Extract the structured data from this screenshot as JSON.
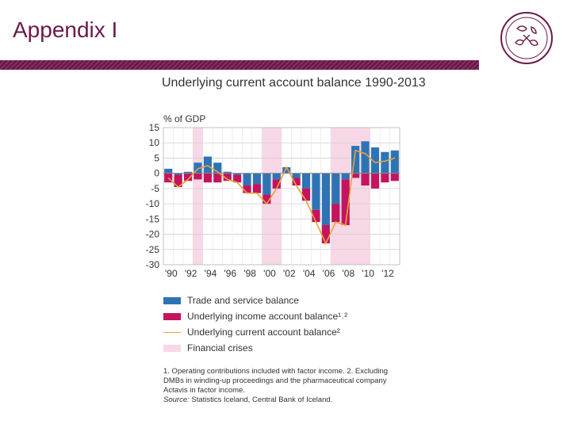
{
  "slide": {
    "title": "Appendix I"
  },
  "colors": {
    "brand": "#6b1a4a",
    "trade": "#2e74b5",
    "income": "#c4145e",
    "current": "#e8a13a",
    "crisis": "#f8d7e6"
  },
  "chart_data": {
    "type": "bar",
    "title": "Underlying current account balance 1990-2013",
    "ylabel": "% of GDP",
    "xlabel": "",
    "ylim": [
      -30,
      15
    ],
    "yticks": [
      15,
      10,
      5,
      0,
      -5,
      -10,
      -15,
      -20,
      -25,
      -30
    ],
    "xtick_labels": [
      "'90",
      "'92",
      "'94",
      "'96",
      "'98",
      "'00",
      "'02",
      "'04",
      "'06",
      "'08",
      "'10",
      "'12"
    ],
    "categories": [
      1990,
      1991,
      1992,
      1993,
      1994,
      1995,
      1996,
      1997,
      1998,
      1999,
      2000,
      2001,
      2002,
      2003,
      2004,
      2005,
      2006,
      2007,
      2008,
      2009,
      2010,
      2011,
      2012,
      2013
    ],
    "stacked": true,
    "grid": true,
    "series": [
      {
        "name": "Trade and service balance",
        "values": [
          1.5,
          -0.5,
          0.5,
          3.5,
          5.5,
          3.5,
          0.5,
          -0.5,
          -4,
          -3.5,
          -7,
          -2,
          2,
          -1.5,
          -5,
          -12,
          -17,
          -10,
          -2,
          9,
          10.5,
          8.5,
          7,
          7.5
        ]
      },
      {
        "name": "Underlying income account balance¹˒²",
        "values": [
          -3,
          -4,
          -2.5,
          -2,
          -3,
          -3,
          -2.5,
          -2.5,
          -2.5,
          -3,
          -3,
          -3,
          0,
          -2.5,
          -4,
          -4,
          -6,
          -6,
          -15,
          -1.5,
          -4,
          -5,
          -3,
          -2.5
        ]
      },
      {
        "name": "Underlying current account balance²",
        "type": "line",
        "values": [
          -1.5,
          -4.5,
          -2,
          1.5,
          2.5,
          0.5,
          -2,
          -3,
          -6.5,
          -6.5,
          -10,
          -5,
          2,
          -4,
          -9,
          -16,
          -23,
          -16,
          -17,
          7.5,
          6.5,
          3.5,
          4,
          5
        ]
      }
    ],
    "shaded_regions": [
      {
        "name": "Financial crises",
        "ranges": [
          [
            1993,
            1993
          ],
          [
            2000,
            2001
          ],
          [
            2007,
            2010
          ]
        ]
      }
    ]
  },
  "legend": {
    "trade": "Trade and service balance",
    "income": "Underlying income account balance¹˒²",
    "current": "Underlying current account balance²",
    "crisis": "Financial crises"
  },
  "footnote": {
    "text": "1. Operating contributions included with factor income. 2. Excluding DMBs in winding-up proceedings and the pharmaceutical company Actavis in factor income.",
    "source_label": "Source:",
    "source_text": "Statistics Iceland, Central Bank of Iceland."
  },
  "logo": {
    "icon": "central-bank-emblem-icon"
  }
}
